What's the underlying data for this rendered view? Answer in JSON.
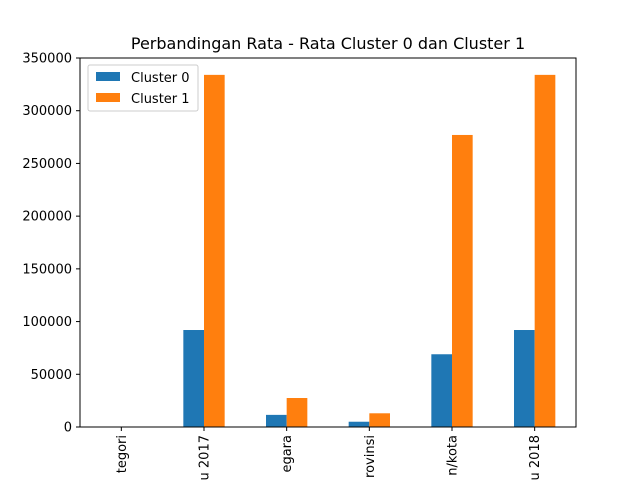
{
  "chart_data": {
    "type": "bar",
    "title": "Perbandingan Rata - Rata Cluster 0 dan Cluster 1",
    "xlabel": "",
    "ylabel": "",
    "categories": [
      "tegori",
      "u 2017",
      "egara",
      "rovinsi",
      "n/kota",
      "u 2018"
    ],
    "series": [
      {
        "name": "Cluster 0",
        "color": "#1f77b4",
        "values": [
          0,
          92000,
          11500,
          5000,
          69000,
          92000
        ]
      },
      {
        "name": "Cluster 1",
        "color": "#ff7f0e",
        "values": [
          0,
          334000,
          27500,
          13000,
          277000,
          334000
        ]
      }
    ],
    "ylim": [
      0,
      350000
    ],
    "yticks": [
      0,
      50000,
      100000,
      150000,
      200000,
      250000,
      300000,
      350000
    ],
    "ytick_labels": [
      "0",
      "50000",
      "100000",
      "150000",
      "200000",
      "250000",
      "300000",
      "350000"
    ],
    "grid": false,
    "legend_position": "top-left",
    "x_tick_rotation": "vertical"
  }
}
